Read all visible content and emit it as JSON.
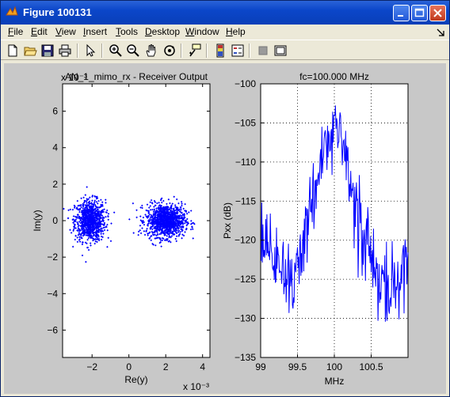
{
  "window": {
    "title": "Figure 100131",
    "controls": [
      "minimize",
      "maximize",
      "close"
    ]
  },
  "menu": {
    "items": [
      {
        "label": "File",
        "accel": "F"
      },
      {
        "label": "Edit",
        "accel": "E"
      },
      {
        "label": "View",
        "accel": "V"
      },
      {
        "label": "Insert",
        "accel": "I"
      },
      {
        "label": "Tools",
        "accel": "T"
      },
      {
        "label": "Desktop",
        "accel": "D"
      },
      {
        "label": "Window",
        "accel": "W"
      },
      {
        "label": "Help",
        "accel": "H"
      }
    ]
  },
  "toolbar": {
    "icons": [
      "new-figure-icon",
      "open-folder-icon",
      "save-icon",
      "print-icon",
      "select-arrow-icon",
      "zoom-in-icon",
      "zoom-out-icon",
      "pan-hand-icon",
      "rotate-3d-icon",
      "data-cursor-icon",
      "colorbar-icon",
      "legend-icon",
      "hide-plot-tools-icon",
      "show-plot-tools-icon"
    ]
  },
  "chart_data": [
    {
      "type": "scatter",
      "title": "AN_1_mimo_rx - Receiver Output",
      "title_overlay": "x 10⁻³",
      "xlabel": "Re(y)",
      "ylabel": "Im(y)",
      "x_multiplier": "x 10⁻³",
      "xlim": [
        -3.6,
        4.4
      ],
      "ylim": [
        -7.5,
        7.5
      ],
      "x_ticks": [
        -2,
        0,
        2,
        4
      ],
      "y_ticks": [
        -6,
        -4,
        -2,
        0,
        2,
        4,
        6
      ],
      "grid": false,
      "series": [
        {
          "color": "#0000ff",
          "clusters": [
            {
              "center_x": -2.1,
              "center_y": 0.0,
              "spread_x": 0.55,
              "spread_y": 0.75,
              "count": 900
            },
            {
              "center_x": 2.0,
              "center_y": 0.0,
              "spread_x": 0.7,
              "spread_y": 0.6,
              "count": 1100
            }
          ]
        }
      ]
    },
    {
      "type": "line",
      "title": "fc=100.000 MHz",
      "xlabel": "MHz",
      "ylabel": "Pxx (dB)",
      "xlim": [
        99,
        101
      ],
      "ylim": [
        -135,
        -100
      ],
      "x_ticks": [
        "99",
        "99.5",
        "100",
        "100.5"
      ],
      "y_ticks": [
        -100,
        -105,
        -110,
        -115,
        -120,
        -125,
        -130,
        -135
      ],
      "grid": true,
      "series": [
        {
          "color": "#0000ff",
          "envelope": [
            [
              99.0,
              -121
            ],
            [
              99.1,
              -122
            ],
            [
              99.2,
              -123
            ],
            [
              99.3,
              -124
            ],
            [
              99.4,
              -125
            ],
            [
              99.5,
              -123
            ],
            [
              99.6,
              -119
            ],
            [
              99.7,
              -116
            ],
            [
              99.8,
              -112
            ],
            [
              99.9,
              -109
            ],
            [
              100.0,
              -105
            ],
            [
              100.1,
              -108
            ],
            [
              100.2,
              -112
            ],
            [
              100.3,
              -116
            ],
            [
              100.4,
              -120
            ],
            [
              100.5,
              -123
            ],
            [
              100.6,
              -125
            ],
            [
              100.7,
              -126
            ],
            [
              100.8,
              -127
            ],
            [
              100.9,
              -124
            ],
            [
              101.0,
              -120
            ]
          ]
        }
      ]
    }
  ]
}
